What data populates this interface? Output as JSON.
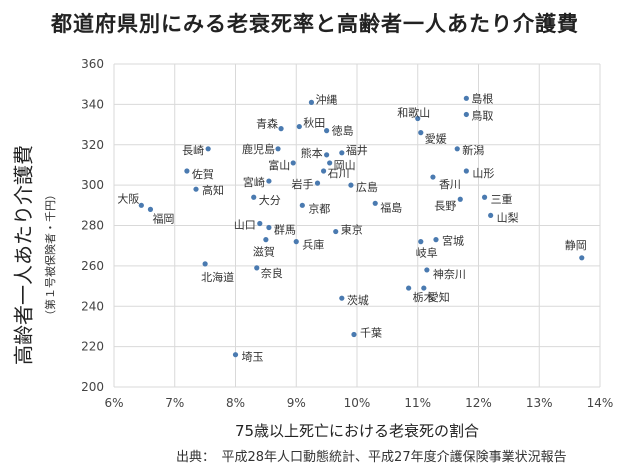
{
  "chart_data": {
    "type": "scatter",
    "title": "都道府県別にみる老衰死率と高齢者一人あたり介護費",
    "xlabel": "75歳以上死亡における老衰死の割合",
    "ylabel": "高齢者一人あたり介護費",
    "ylabel_sub": "（第１号被保険者・千円）",
    "xlim": [
      6,
      14
    ],
    "ylim": [
      200,
      360
    ],
    "x_ticks": [
      "6%",
      "7%",
      "8%",
      "9%",
      "10%",
      "11%",
      "12%",
      "13%",
      "14%"
    ],
    "y_ticks": [
      "200",
      "220",
      "240",
      "260",
      "280",
      "300",
      "320",
      "340",
      "360"
    ],
    "grid": true,
    "marker_color": "#4a7ab0",
    "points": [
      {
        "name": "沖縄",
        "x": 9.25,
        "y": 341
      },
      {
        "name": "青森",
        "x": 8.75,
        "y": 328
      },
      {
        "name": "秋田",
        "x": 9.05,
        "y": 329
      },
      {
        "name": "徳島",
        "x": 9.5,
        "y": 327
      },
      {
        "name": "和歌山",
        "x": 11.0,
        "y": 333
      },
      {
        "name": "島根",
        "x": 11.8,
        "y": 343
      },
      {
        "name": "鳥取",
        "x": 11.8,
        "y": 335
      },
      {
        "name": "愛媛",
        "x": 11.05,
        "y": 326
      },
      {
        "name": "長崎",
        "x": 7.55,
        "y": 318
      },
      {
        "name": "鹿児島",
        "x": 8.7,
        "y": 318
      },
      {
        "name": "熊本",
        "x": 9.5,
        "y": 315
      },
      {
        "name": "福井",
        "x": 9.75,
        "y": 316
      },
      {
        "name": "新潟",
        "x": 11.65,
        "y": 318
      },
      {
        "name": "富山",
        "x": 8.95,
        "y": 311
      },
      {
        "name": "岡山",
        "x": 9.55,
        "y": 311
      },
      {
        "name": "石川",
        "x": 9.45,
        "y": 307
      },
      {
        "name": "佐賀",
        "x": 7.2,
        "y": 307
      },
      {
        "name": "山形",
        "x": 11.8,
        "y": 307
      },
      {
        "name": "宮崎",
        "x": 8.55,
        "y": 302
      },
      {
        "name": "岩手",
        "x": 9.35,
        "y": 301
      },
      {
        "name": "広島",
        "x": 9.9,
        "y": 300
      },
      {
        "name": "香川",
        "x": 11.25,
        "y": 304
      },
      {
        "name": "高知",
        "x": 7.35,
        "y": 298
      },
      {
        "name": "大阪",
        "x": 6.45,
        "y": 290
      },
      {
        "name": "福岡",
        "x": 6.6,
        "y": 288
      },
      {
        "name": "大分",
        "x": 8.3,
        "y": 294
      },
      {
        "name": "三重",
        "x": 12.1,
        "y": 294
      },
      {
        "name": "長野",
        "x": 11.7,
        "y": 293
      },
      {
        "name": "京都",
        "x": 9.1,
        "y": 290
      },
      {
        "name": "福島",
        "x": 10.3,
        "y": 291
      },
      {
        "name": "山梨",
        "x": 12.2,
        "y": 285
      },
      {
        "name": "山口",
        "x": 8.4,
        "y": 281
      },
      {
        "name": "群馬",
        "x": 8.55,
        "y": 279
      },
      {
        "name": "東京",
        "x": 9.65,
        "y": 277
      },
      {
        "name": "宮城",
        "x": 11.3,
        "y": 273
      },
      {
        "name": "兵庫",
        "x": 9.0,
        "y": 272
      },
      {
        "name": "岐阜",
        "x": 11.05,
        "y": 272
      },
      {
        "name": "滋賀",
        "x": 8.5,
        "y": 273
      },
      {
        "name": "静岡",
        "x": 13.7,
        "y": 264
      },
      {
        "name": "北海道",
        "x": 7.5,
        "y": 261
      },
      {
        "name": "奈良",
        "x": 8.35,
        "y": 259
      },
      {
        "name": "神奈川",
        "x": 11.15,
        "y": 258
      },
      {
        "name": "栃木",
        "x": 10.85,
        "y": 249
      },
      {
        "name": "愛知",
        "x": 11.1,
        "y": 249
      },
      {
        "name": "茨城",
        "x": 9.75,
        "y": 244
      },
      {
        "name": "千葉",
        "x": 9.95,
        "y": 226
      },
      {
        "name": "埼玉",
        "x": 8.0,
        "y": 216
      }
    ]
  },
  "source": "出典：　平成28年人口動態統計、平成27年度介護保険事業状況報告"
}
